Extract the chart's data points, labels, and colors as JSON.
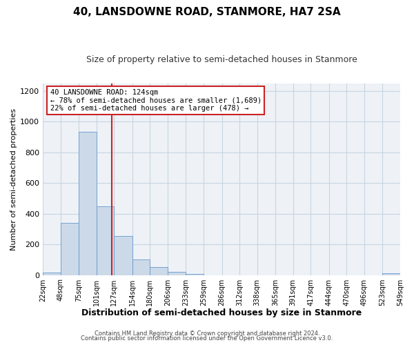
{
  "title": "40, LANSDOWNE ROAD, STANMORE, HA7 2SA",
  "subtitle": "Size of property relative to semi-detached houses in Stanmore",
  "xlabel": "Distribution of semi-detached houses by size in Stanmore",
  "ylabel": "Number of semi-detached properties",
  "annotation_line1": "40 LANSDOWNE ROAD: 124sqm",
  "annotation_line2": "← 78% of semi-detached houses are smaller (1,689)",
  "annotation_line3": "22% of semi-detached houses are larger (478) →",
  "footer_line1": "Contains HM Land Registry data © Crown copyright and database right 2024.",
  "footer_line2": "Contains public sector information licensed under the Open Government Licence v3.0.",
  "bin_edges": [
    22,
    48,
    75,
    101,
    127,
    154,
    180,
    206,
    233,
    259,
    286,
    312,
    338,
    365,
    391,
    417,
    444,
    470,
    496,
    523,
    549
  ],
  "bar_heights": [
    15,
    340,
    935,
    450,
    255,
    103,
    52,
    22,
    5,
    0,
    0,
    0,
    0,
    0,
    0,
    0,
    0,
    0,
    0,
    13
  ],
  "bar_color": "#ccd9e8",
  "bar_edge_color": "#6699cc",
  "property_size": 124,
  "vline_color": "#cc2222",
  "annotation_box_color": "#cc2222",
  "ylim": [
    0,
    1250
  ],
  "yticks": [
    0,
    200,
    400,
    600,
    800,
    1000,
    1200
  ],
  "grid_color": "#c8d4e0",
  "bg_color": "#eef2f7",
  "title_fontsize": 11,
  "subtitle_fontsize": 9,
  "axis_label_fontsize": 8,
  "tick_fontsize": 7,
  "footer_fontsize": 6
}
